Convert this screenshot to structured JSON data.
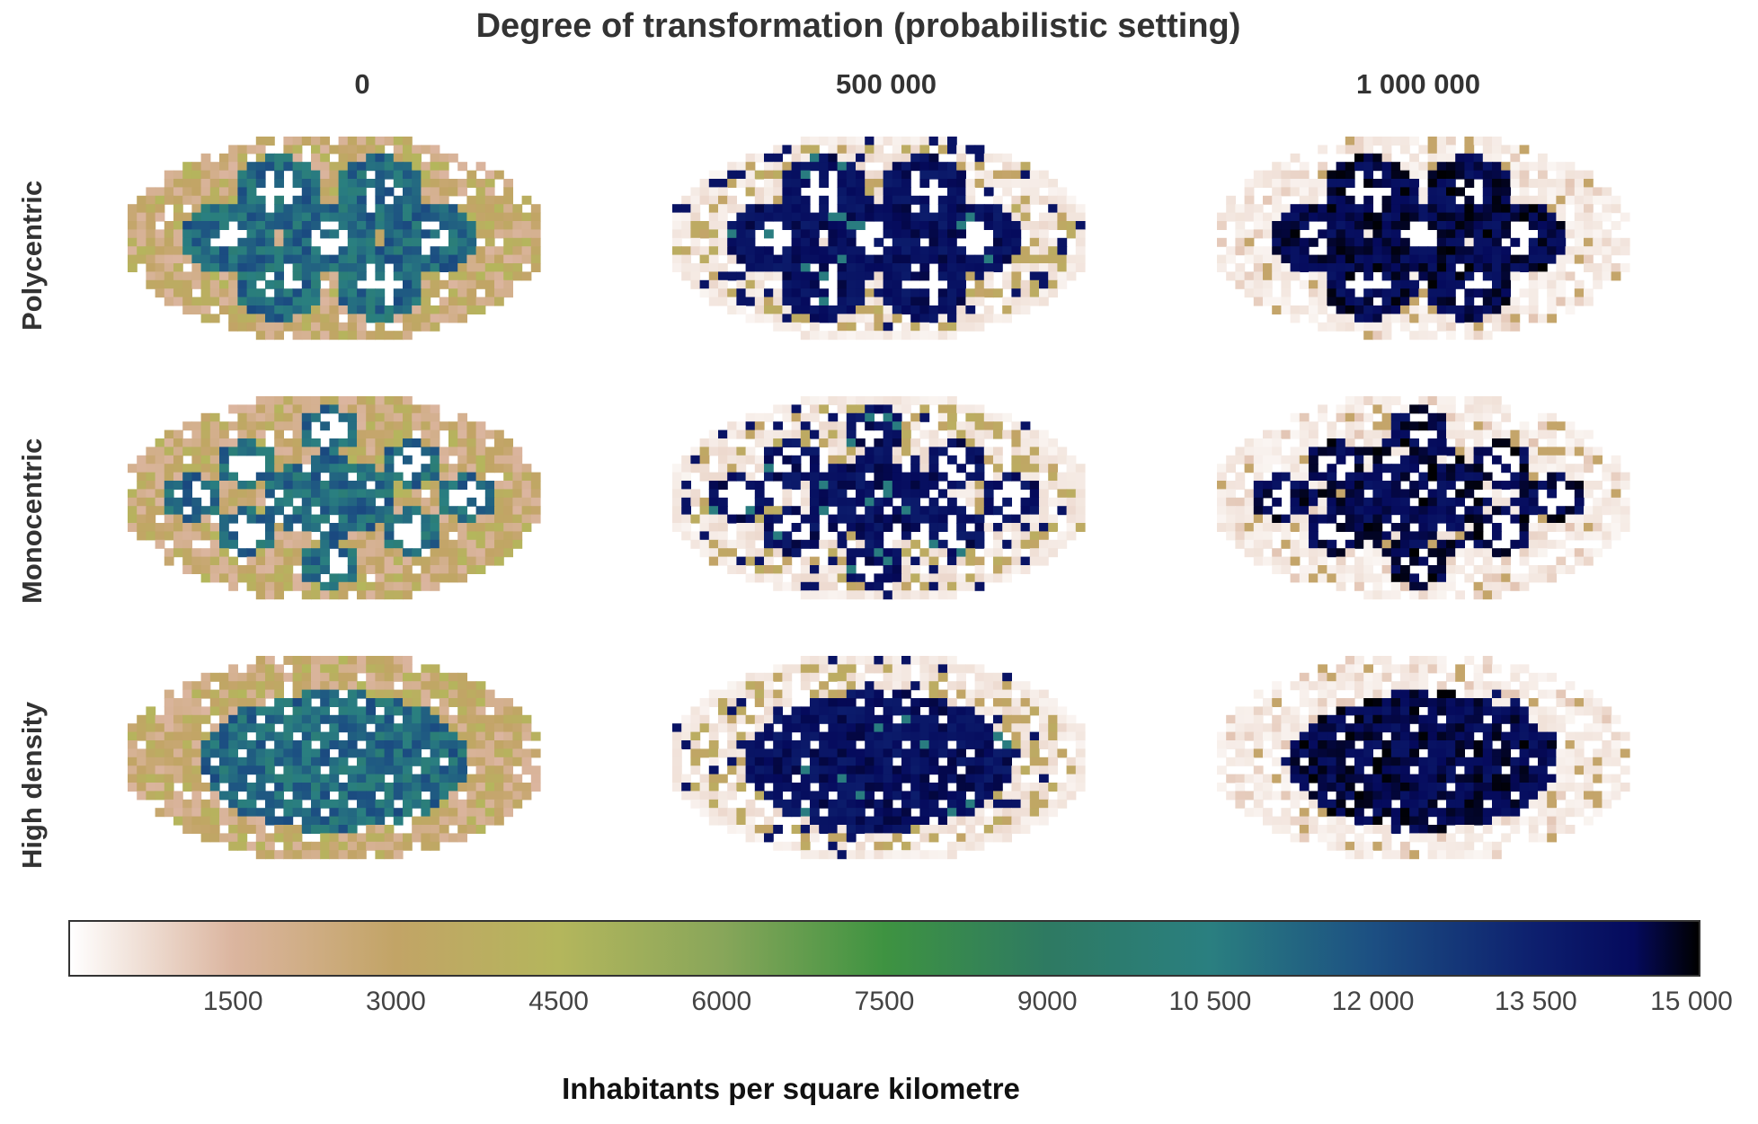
{
  "chart_data": {
    "type": "heatmap",
    "title": "Degree of transformation (probabilistic setting)",
    "columns": [
      "0",
      "500 000",
      "1 000 000"
    ],
    "rows": [
      "Polycentric",
      "Monocentric",
      "High density"
    ],
    "panels": [
      {
        "row": "Polycentric",
        "column": "0",
        "shape": "polycentric",
        "level": 0
      },
      {
        "row": "Polycentric",
        "column": "500 000",
        "shape": "polycentric",
        "level": 1
      },
      {
        "row": "Polycentric",
        "column": "1 000 000",
        "shape": "polycentric",
        "level": 2
      },
      {
        "row": "Monocentric",
        "column": "0",
        "shape": "monocentric",
        "level": 0
      },
      {
        "row": "Monocentric",
        "column": "500 000",
        "shape": "monocentric",
        "level": 1
      },
      {
        "row": "Monocentric",
        "column": "1 000 000",
        "shape": "monocentric",
        "level": 2
      },
      {
        "row": "High density",
        "column": "0",
        "shape": "dense",
        "level": 0
      },
      {
        "row": "High density",
        "column": "500 000",
        "shape": "dense",
        "level": 1
      },
      {
        "row": "High density",
        "column": "1 000 000",
        "shape": "dense",
        "level": 2
      }
    ],
    "colorbar": {
      "label": "Inhabitants per square kilometre",
      "range": [
        0,
        15000
      ],
      "ticks": [
        "1500",
        "3000",
        "4500",
        "6000",
        "7500",
        "9000",
        "10 500",
        "12 000",
        "13 500",
        "15 000"
      ],
      "tick_values": [
        1500,
        3000,
        4500,
        6000,
        7500,
        9000,
        10500,
        12000,
        13500,
        15000
      ],
      "colormap_stops": [
        {
          "value": 0,
          "color": "#ffffff"
        },
        {
          "value": 1500,
          "color": "#dbb59f"
        },
        {
          "value": 3000,
          "color": "#c2a466"
        },
        {
          "value": 4500,
          "color": "#b4b65c"
        },
        {
          "value": 6000,
          "color": "#88a65a"
        },
        {
          "value": 7500,
          "color": "#3e9341"
        },
        {
          "value": 9000,
          "color": "#2e7a62"
        },
        {
          "value": 10500,
          "color": "#2a7f80"
        },
        {
          "value": 12000,
          "color": "#1c4f82"
        },
        {
          "value": 13500,
          "color": "#0d1f6e"
        },
        {
          "value": 14400,
          "color": "#050a5c"
        },
        {
          "value": 15000,
          "color": "#000000"
        }
      ]
    }
  }
}
